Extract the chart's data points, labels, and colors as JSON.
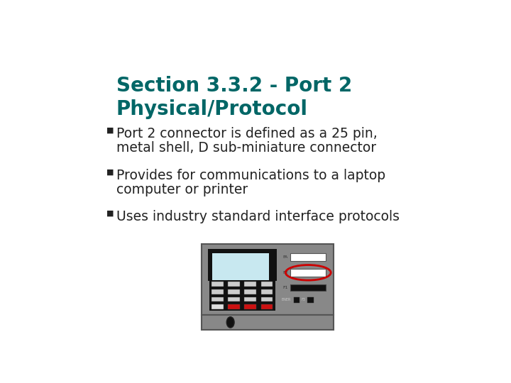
{
  "background_color": "#ffffff",
  "title_line1": "Section 3.3.2 - Port 2",
  "title_line2": "Physical/Protocol",
  "title_color": "#006666",
  "title_fontsize": 20,
  "bullet_color": "#222222",
  "bullet_fontsize": 13.5,
  "bullets": [
    [
      "Port 2 connector is defined as a 25 pin,",
      "metal shell, D sub-miniature connector"
    ],
    [
      "Provides for communications to a laptop",
      "computer or printer"
    ],
    [
      "Uses industry standard interface protocols"
    ]
  ],
  "device_body_color": "#888888",
  "device_edge_color": "#555555",
  "screen_color": "#c8e8f0",
  "keypad_bg": "#111111",
  "btn_normal": "#aaaaaa",
  "btn_red": "#cc1111",
  "btn_white": "#ffffff",
  "f_button_color": "#ffffff",
  "f_button_dark": "#111111",
  "red_circle_color": "#cc0000"
}
